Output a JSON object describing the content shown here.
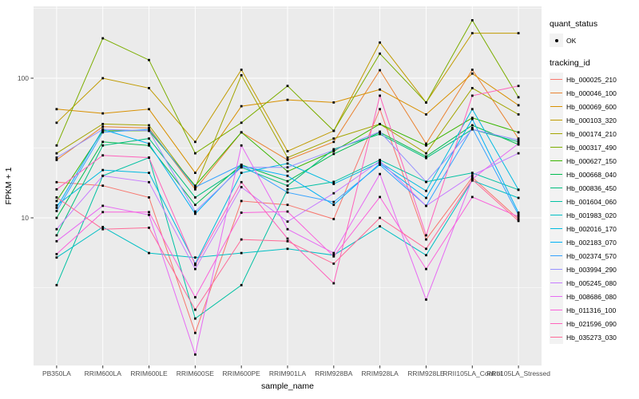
{
  "chart_data": {
    "type": "line",
    "title": "",
    "xlabel": "sample_name",
    "ylabel": "FPKM + 1",
    "y_scale": "log10",
    "y_ticks": [
      10,
      100
    ],
    "y_minor_ticks": [
      3.162,
      31.62,
      316.2
    ],
    "ylim": [
      0.95,
      320
    ],
    "grid": true,
    "legend_position": "right",
    "panel_bg": "#EBEBEB",
    "grid_color": "#FFFFFF",
    "key_bg": "#F2F2F2",
    "point_color": "#000000",
    "tick_label_color": "#4D4D4D",
    "legend": {
      "quant_status_title": "quant_status",
      "quant_status_items": [
        {
          "label": "OK",
          "marker": "black-point"
        }
      ],
      "tracking_id_title": "tracking_id"
    },
    "x_categories": [
      "PB350LA",
      "RRIM600LA",
      "RRIM600LE",
      "RRIM600SE",
      "RRIM600PE",
      "RRIM901LA",
      "RRIM928BA",
      "RRIM928LA",
      "RRIM928LE",
      "RRII105LA_Control",
      "RRII105LA_Stressed"
    ],
    "series": [
      {
        "name": "Hb_000025_210",
        "color": "#F8766D",
        "values": [
          18,
          17,
          14,
          1.5,
          13.2,
          12.4,
          9.8,
          60,
          7.0,
          19.5,
          9.8
        ]
      },
      {
        "name": "Hb_000046_100",
        "color": "#EA8331",
        "values": [
          26,
          45,
          44,
          16,
          41,
          26,
          35,
          114,
          34,
          115,
          37
        ]
      },
      {
        "name": "Hb_000069_600",
        "color": "#D89000",
        "values": [
          60,
          56,
          60,
          21,
          63,
          70,
          67,
          83,
          55,
          108,
          64
        ]
      },
      {
        "name": "Hb_000103_320",
        "color": "#C09B00",
        "values": [
          48,
          100,
          85,
          35,
          115,
          30,
          42,
          180,
          67,
          210,
          210
        ]
      },
      {
        "name": "Hb_000174_210",
        "color": "#A3A500",
        "values": [
          29,
          47,
          46,
          16.5,
          105,
          27,
          37,
          47,
          29,
          85,
          55
        ]
      },
      {
        "name": "Hb_000317_490",
        "color": "#7CAE00",
        "values": [
          33,
          193,
          135,
          29,
          48,
          88,
          42,
          150,
          67,
          260,
          73
        ]
      },
      {
        "name": "Hb_000627_150",
        "color": "#39B600",
        "values": [
          13.2,
          42,
          42,
          17,
          41,
          21.5,
          30,
          47,
          33,
          52,
          41
        ]
      },
      {
        "name": "Hb_000668_040",
        "color": "#00BB4E",
        "values": [
          10,
          35,
          33,
          12.4,
          24,
          18.3,
          28.7,
          41,
          27.5,
          46,
          33.5
        ]
      },
      {
        "name": "Hb_000836_450",
        "color": "#00BF7D",
        "values": [
          7.5,
          33,
          37,
          14,
          23,
          17,
          31,
          39.8,
          26.8,
          43,
          35
        ]
      },
      {
        "name": "Hb_001604_060",
        "color": "#00C1A3",
        "values": [
          3.3,
          20,
          27,
          1.9,
          3.3,
          16,
          18.1,
          26,
          18.1,
          21,
          15.9
        ]
      },
      {
        "name": "Hb_001983_020",
        "color": "#00BFC4",
        "values": [
          5.2,
          8.6,
          5.6,
          5.2,
          5.6,
          6.0,
          5.4,
          8.7,
          5.4,
          18.5,
          13.9
        ]
      },
      {
        "name": "Hb_002016_170",
        "color": "#00BAE0",
        "values": [
          12.3,
          22,
          21,
          4.7,
          21,
          24.5,
          17.5,
          25,
          15.6,
          60,
          15.9
        ]
      },
      {
        "name": "Hb_002183_070",
        "color": "#00B0F6",
        "values": [
          11.8,
          43,
          34,
          10.7,
          23.5,
          20,
          12.4,
          24.5,
          13.9,
          51,
          10.9
        ]
      },
      {
        "name": "Hb_002374_570",
        "color": "#35A2FF",
        "values": [
          11.2,
          41,
          43,
          16.6,
          24,
          15.2,
          13,
          24,
          12.2,
          44,
          10.5
        ]
      },
      {
        "name": "Hb_003994_290",
        "color": "#9590FF",
        "values": [
          27,
          43,
          42,
          11.1,
          23,
          23,
          30.5,
          41.4,
          18.1,
          43,
          36
        ]
      },
      {
        "name": "Hb_005245_080",
        "color": "#C77CFF",
        "values": [
          8.3,
          20,
          18,
          4.3,
          16.6,
          9.4,
          15,
          25.5,
          12.2,
          20.2,
          29
        ]
      },
      {
        "name": "Hb_008686_080",
        "color": "#E76BF3",
        "values": [
          6.8,
          12.2,
          10.5,
          1.05,
          33,
          8.3,
          5.6,
          20.6,
          2.6,
          19,
          34
        ]
      },
      {
        "name": "Hb_011316_100",
        "color": "#FA62DB",
        "values": [
          5.5,
          11,
          11,
          2.7,
          10.9,
          11.1,
          5.3,
          14.1,
          4.3,
          14.1,
          10.2
        ]
      },
      {
        "name": "Hb_021596_090",
        "color": "#FF62BC",
        "values": [
          16,
          28,
          27,
          4.6,
          18,
          7.1,
          3.4,
          75,
          7.5,
          75,
          88
        ]
      },
      {
        "name": "Hb_035273_030",
        "color": "#FF6A98",
        "values": [
          14,
          8.3,
          8.5,
          2.2,
          7.0,
          6.8,
          4.7,
          10,
          6.0,
          18.8,
          9.5
        ]
      }
    ]
  }
}
